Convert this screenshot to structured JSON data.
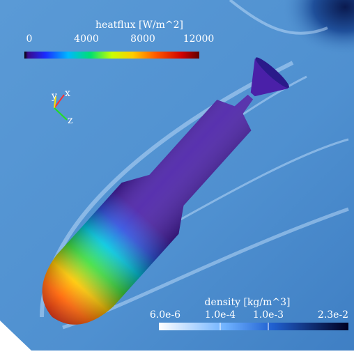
{
  "heatflux_bar": {
    "title": "heatflux [W/m^2]",
    "ticks": [
      "0",
      "4000",
      "8000",
      "12000"
    ]
  },
  "density_bar": {
    "title": "density [kg/m^3]",
    "ticks": [
      "6.0e-6",
      "1.0e-4",
      "1.0e-3",
      "2.3e-2"
    ]
  },
  "axes": {
    "x": "x",
    "y": "y",
    "z": "z"
  }
}
